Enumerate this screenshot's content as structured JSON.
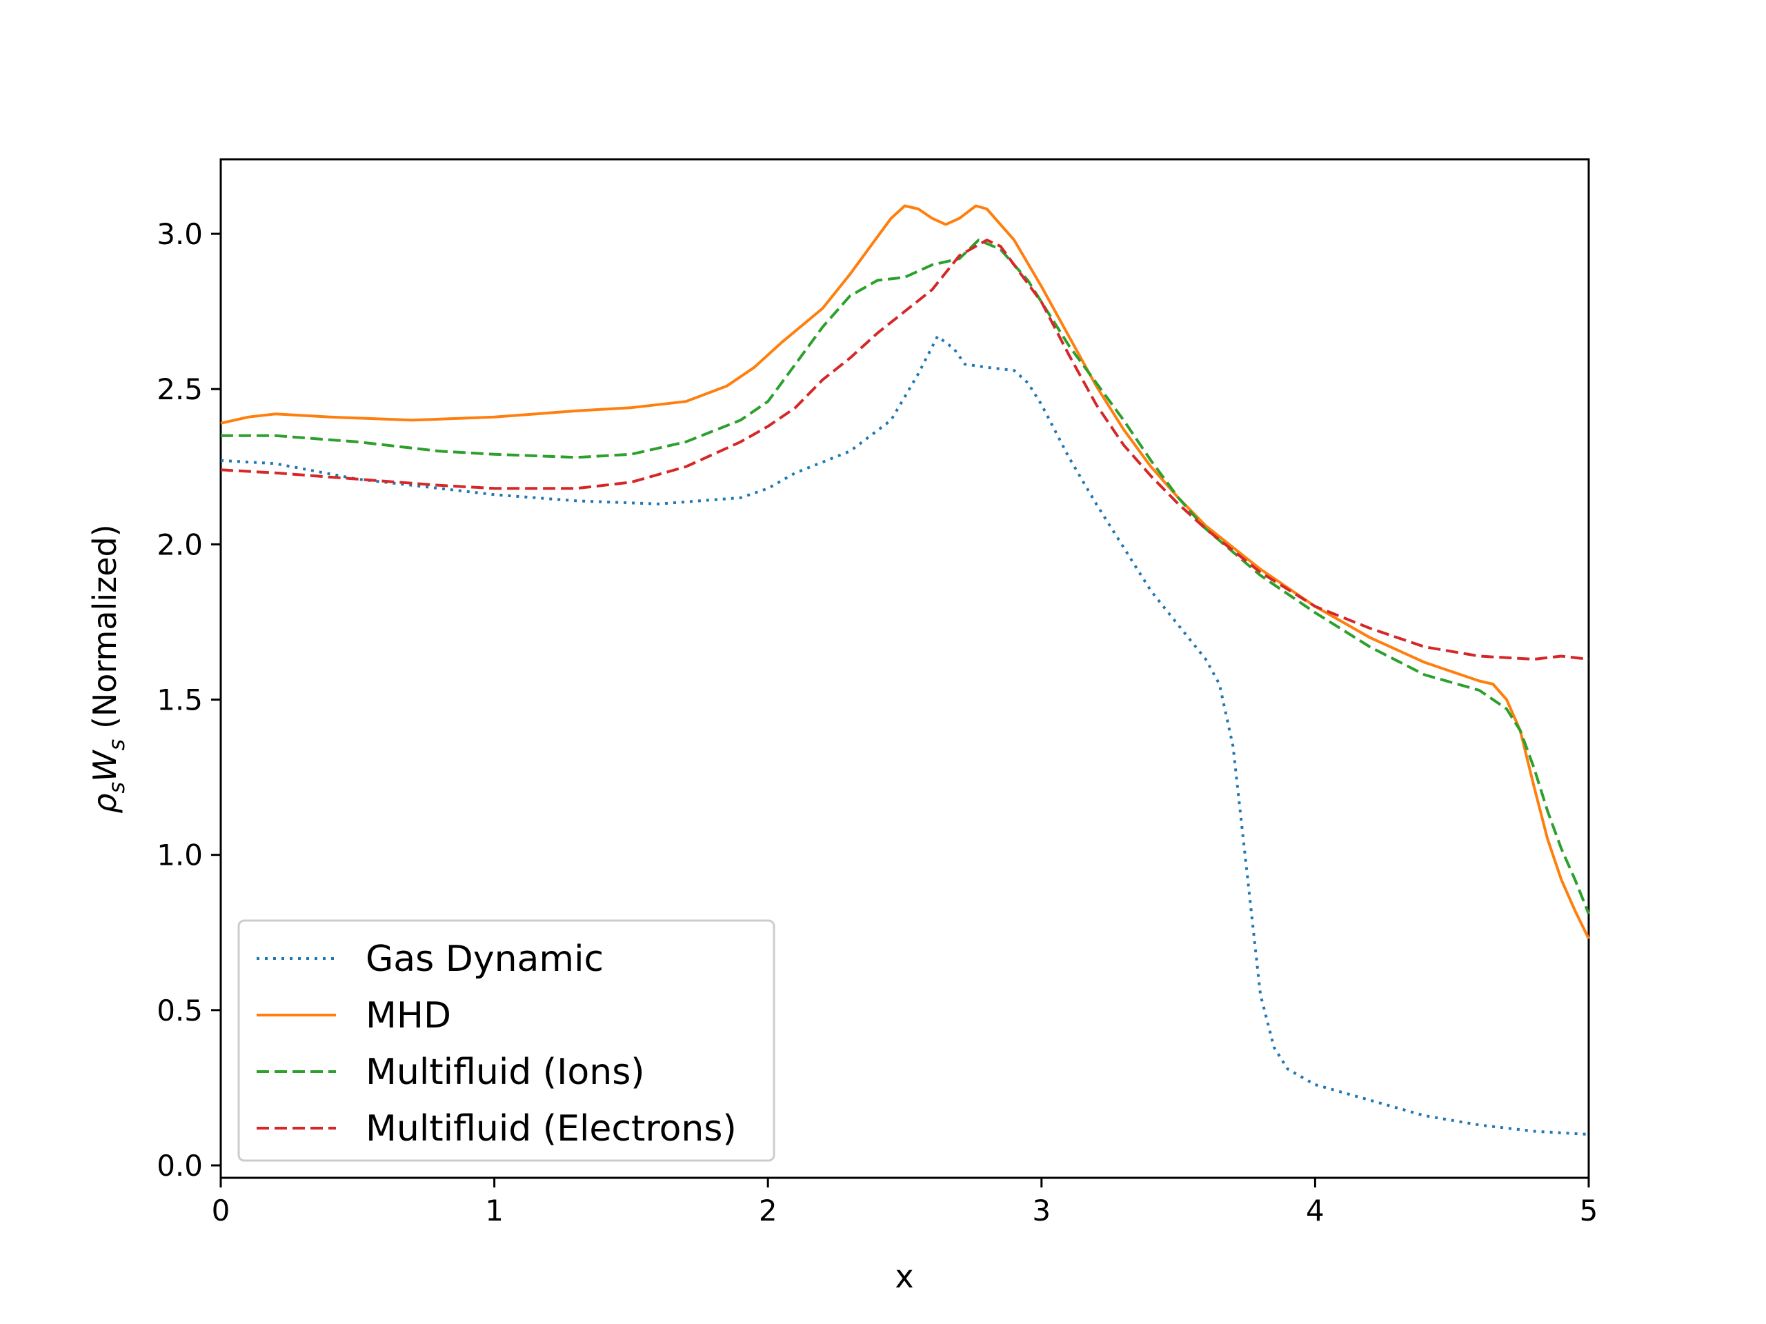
{
  "chart_data": {
    "type": "line",
    "title": "",
    "xlabel": "x",
    "ylabel": {
      "main": "ρ",
      "sub1": "s",
      "mid": "W",
      "sub2": "s",
      "suffix": " (Normalized)"
    },
    "xlim": [
      0,
      5
    ],
    "ylim": [
      -0.04,
      3.24
    ],
    "xticks": [
      0,
      1,
      2,
      3,
      4,
      5
    ],
    "xtick_labels": [
      "0",
      "1",
      "2",
      "3",
      "4",
      "5"
    ],
    "yticks": [
      0.0,
      0.5,
      1.0,
      1.5,
      2.0,
      2.5,
      3.0
    ],
    "ytick_labels": [
      "0.0",
      "0.5",
      "1.0",
      "1.5",
      "2.0",
      "2.5",
      "3.0"
    ],
    "grid": false,
    "legend_position": "lower-left",
    "series": [
      {
        "name": "Gas Dynamic",
        "color": "#1f77b4",
        "style": "dotted",
        "points": [
          [
            0,
            2.27
          ],
          [
            0.2,
            2.26
          ],
          [
            0.5,
            2.21
          ],
          [
            0.8,
            2.18
          ],
          [
            1.0,
            2.16
          ],
          [
            1.3,
            2.14
          ],
          [
            1.6,
            2.13
          ],
          [
            1.9,
            2.15
          ],
          [
            2.0,
            2.18
          ],
          [
            2.1,
            2.23
          ],
          [
            2.3,
            2.3
          ],
          [
            2.45,
            2.4
          ],
          [
            2.55,
            2.55
          ],
          [
            2.62,
            2.67
          ],
          [
            2.68,
            2.63
          ],
          [
            2.72,
            2.58
          ],
          [
            2.8,
            2.57
          ],
          [
            2.9,
            2.56
          ],
          [
            2.95,
            2.52
          ],
          [
            3.0,
            2.45
          ],
          [
            3.1,
            2.28
          ],
          [
            3.2,
            2.13
          ],
          [
            3.3,
            1.99
          ],
          [
            3.4,
            1.85
          ],
          [
            3.5,
            1.74
          ],
          [
            3.6,
            1.63
          ],
          [
            3.65,
            1.55
          ],
          [
            3.7,
            1.35
          ],
          [
            3.75,
            0.95
          ],
          [
            3.8,
            0.55
          ],
          [
            3.85,
            0.38
          ],
          [
            3.9,
            0.31
          ],
          [
            4.0,
            0.26
          ],
          [
            4.2,
            0.21
          ],
          [
            4.4,
            0.16
          ],
          [
            4.6,
            0.13
          ],
          [
            4.8,
            0.11
          ],
          [
            5.0,
            0.1
          ]
        ]
      },
      {
        "name": "MHD",
        "color": "#ff7f0e",
        "style": "solid",
        "points": [
          [
            0,
            2.39
          ],
          [
            0.1,
            2.41
          ],
          [
            0.2,
            2.42
          ],
          [
            0.4,
            2.41
          ],
          [
            0.7,
            2.4
          ],
          [
            1.0,
            2.41
          ],
          [
            1.3,
            2.43
          ],
          [
            1.5,
            2.44
          ],
          [
            1.7,
            2.46
          ],
          [
            1.85,
            2.51
          ],
          [
            1.95,
            2.57
          ],
          [
            2.05,
            2.65
          ],
          [
            2.2,
            2.76
          ],
          [
            2.3,
            2.87
          ],
          [
            2.4,
            2.99
          ],
          [
            2.45,
            3.05
          ],
          [
            2.5,
            3.09
          ],
          [
            2.55,
            3.08
          ],
          [
            2.6,
            3.05
          ],
          [
            2.65,
            3.03
          ],
          [
            2.7,
            3.05
          ],
          [
            2.76,
            3.09
          ],
          [
            2.8,
            3.08
          ],
          [
            2.9,
            2.98
          ],
          [
            3.0,
            2.83
          ],
          [
            3.1,
            2.67
          ],
          [
            3.2,
            2.51
          ],
          [
            3.3,
            2.37
          ],
          [
            3.4,
            2.25
          ],
          [
            3.5,
            2.15
          ],
          [
            3.6,
            2.06
          ],
          [
            3.8,
            1.92
          ],
          [
            4.0,
            1.8
          ],
          [
            4.2,
            1.7
          ],
          [
            4.4,
            1.62
          ],
          [
            4.6,
            1.56
          ],
          [
            4.65,
            1.55
          ],
          [
            4.7,
            1.5
          ],
          [
            4.75,
            1.4
          ],
          [
            4.8,
            1.22
          ],
          [
            4.85,
            1.05
          ],
          [
            4.9,
            0.92
          ],
          [
            4.95,
            0.82
          ],
          [
            5.0,
            0.73
          ]
        ]
      },
      {
        "name": "Multifluid (Ions)",
        "color": "#2ca02c",
        "style": "dashed",
        "points": [
          [
            0,
            2.35
          ],
          [
            0.2,
            2.35
          ],
          [
            0.5,
            2.33
          ],
          [
            0.8,
            2.3
          ],
          [
            1.0,
            2.29
          ],
          [
            1.3,
            2.28
          ],
          [
            1.5,
            2.29
          ],
          [
            1.7,
            2.33
          ],
          [
            1.9,
            2.4
          ],
          [
            2.0,
            2.46
          ],
          [
            2.1,
            2.58
          ],
          [
            2.2,
            2.7
          ],
          [
            2.3,
            2.8
          ],
          [
            2.4,
            2.85
          ],
          [
            2.5,
            2.86
          ],
          [
            2.6,
            2.9
          ],
          [
            2.7,
            2.92
          ],
          [
            2.77,
            2.98
          ],
          [
            2.85,
            2.95
          ],
          [
            2.95,
            2.85
          ],
          [
            3.0,
            2.78
          ],
          [
            3.1,
            2.64
          ],
          [
            3.2,
            2.52
          ],
          [
            3.3,
            2.4
          ],
          [
            3.4,
            2.27
          ],
          [
            3.5,
            2.15
          ],
          [
            3.6,
            2.05
          ],
          [
            3.8,
            1.9
          ],
          [
            4.0,
            1.78
          ],
          [
            4.2,
            1.67
          ],
          [
            4.4,
            1.58
          ],
          [
            4.6,
            1.53
          ],
          [
            4.7,
            1.47
          ],
          [
            4.75,
            1.4
          ],
          [
            4.8,
            1.28
          ],
          [
            4.85,
            1.14
          ],
          [
            4.9,
            1.02
          ],
          [
            4.95,
            0.92
          ],
          [
            5.0,
            0.81
          ]
        ]
      },
      {
        "name": "Multifluid (Electrons)",
        "color": "#d62728",
        "style": "dashed",
        "points": [
          [
            0,
            2.24
          ],
          [
            0.2,
            2.23
          ],
          [
            0.5,
            2.21
          ],
          [
            0.8,
            2.19
          ],
          [
            1.0,
            2.18
          ],
          [
            1.3,
            2.18
          ],
          [
            1.5,
            2.2
          ],
          [
            1.7,
            2.25
          ],
          [
            1.9,
            2.33
          ],
          [
            2.0,
            2.38
          ],
          [
            2.1,
            2.44
          ],
          [
            2.2,
            2.53
          ],
          [
            2.3,
            2.6
          ],
          [
            2.4,
            2.68
          ],
          [
            2.5,
            2.75
          ],
          [
            2.6,
            2.82
          ],
          [
            2.7,
            2.93
          ],
          [
            2.8,
            2.98
          ],
          [
            2.85,
            2.96
          ],
          [
            2.9,
            2.9
          ],
          [
            3.0,
            2.78
          ],
          [
            3.1,
            2.61
          ],
          [
            3.2,
            2.45
          ],
          [
            3.3,
            2.32
          ],
          [
            3.4,
            2.22
          ],
          [
            3.5,
            2.13
          ],
          [
            3.6,
            2.05
          ],
          [
            3.8,
            1.91
          ],
          [
            4.0,
            1.8
          ],
          [
            4.2,
            1.73
          ],
          [
            4.4,
            1.67
          ],
          [
            4.6,
            1.64
          ],
          [
            4.8,
            1.63
          ],
          [
            4.9,
            1.64
          ],
          [
            5.0,
            1.63
          ]
        ]
      }
    ]
  }
}
